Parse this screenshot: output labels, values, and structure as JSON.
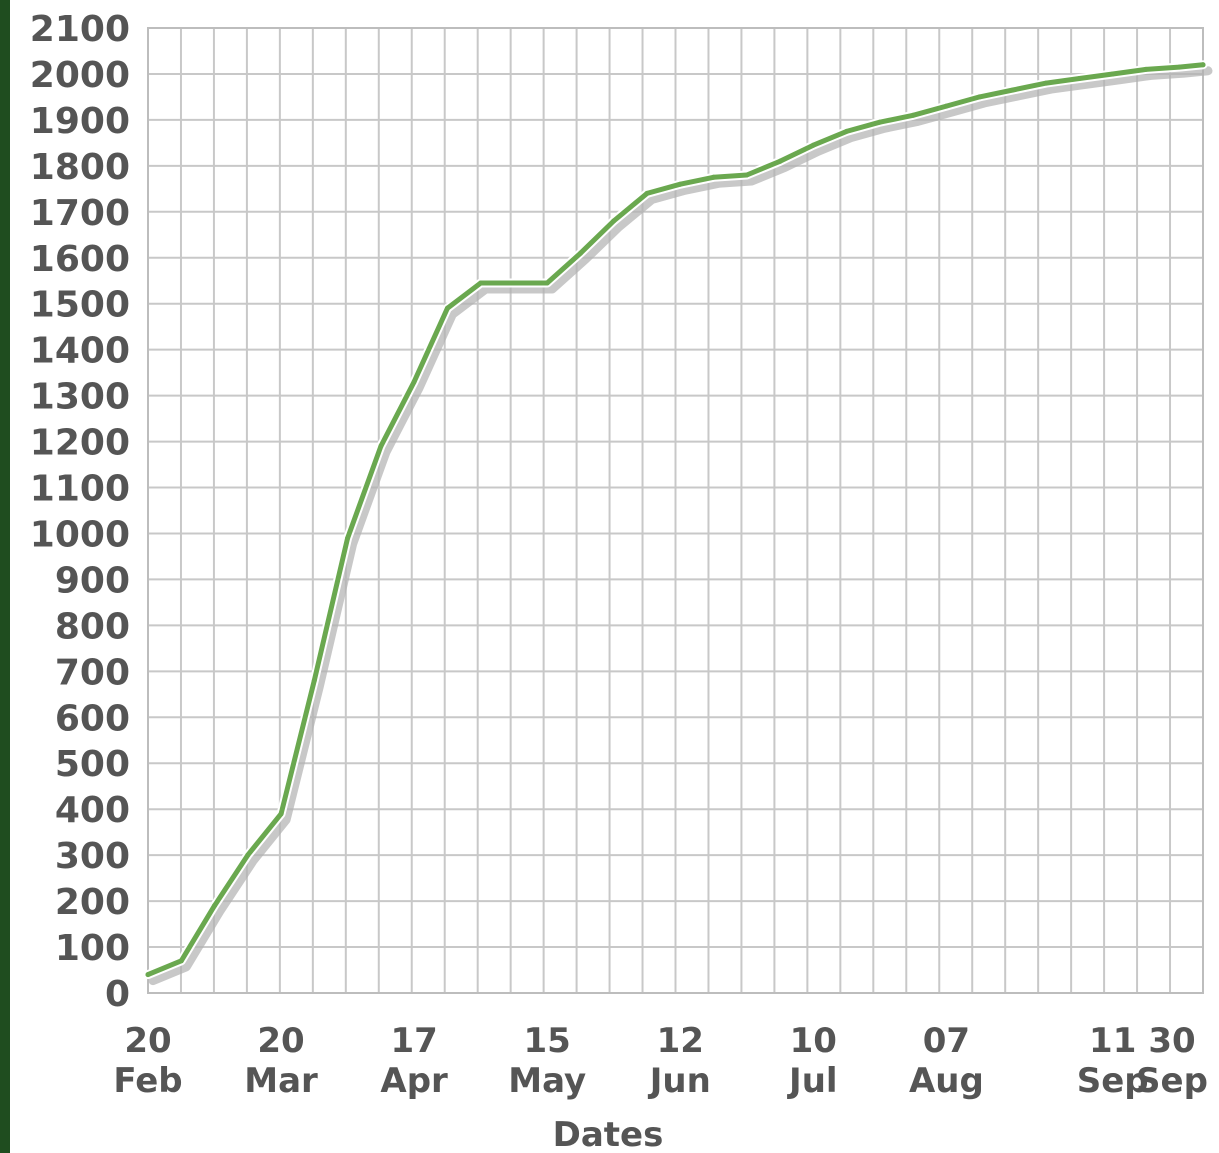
{
  "chart_data": {
    "type": "line",
    "title": "",
    "xlabel": "Dates",
    "ylabel": "",
    "ylim": [
      0,
      2100
    ],
    "yticks": [
      0,
      100,
      200,
      300,
      400,
      500,
      600,
      700,
      800,
      900,
      1000,
      1100,
      1200,
      1300,
      1400,
      1500,
      1600,
      1700,
      1800,
      1900,
      2000,
      2100
    ],
    "xtick_labels": [
      {
        "day": "20",
        "month": "Feb"
      },
      {
        "day": "20",
        "month": "Mar"
      },
      {
        "day": "17",
        "month": "Apr"
      },
      {
        "day": "15",
        "month": "May"
      },
      {
        "day": "12",
        "month": "Jun"
      },
      {
        "day": "10",
        "month": "Jul"
      },
      {
        "day": "07",
        "month": "Aug"
      },
      {
        "day": "11",
        "month": "Sep"
      },
      {
        "day": "30",
        "month": "Sep"
      }
    ],
    "grid": true,
    "line_color": "#6aa84f",
    "shadow_color": "#b0b0b0",
    "series": [
      {
        "points": [
          {
            "x": "20 Feb",
            "y": 40
          },
          {
            "x": "27 Feb",
            "y": 70
          },
          {
            "x": "06 Mar",
            "y": 190
          },
          {
            "x": "13 Mar",
            "y": 300
          },
          {
            "x": "20 Mar",
            "y": 390
          },
          {
            "x": "27 Mar",
            "y": 680
          },
          {
            "x": "03 Apr",
            "y": 990
          },
          {
            "x": "10 Apr",
            "y": 1190
          },
          {
            "x": "17 Apr",
            "y": 1330
          },
          {
            "x": "24 Apr",
            "y": 1490
          },
          {
            "x": "01 May",
            "y": 1545
          },
          {
            "x": "08 May",
            "y": 1545
          },
          {
            "x": "15 May",
            "y": 1545
          },
          {
            "x": "22 May",
            "y": 1610
          },
          {
            "x": "29 May",
            "y": 1680
          },
          {
            "x": "05 Jun",
            "y": 1740
          },
          {
            "x": "12 Jun",
            "y": 1760
          },
          {
            "x": "19 Jun",
            "y": 1775
          },
          {
            "x": "26 Jun",
            "y": 1780
          },
          {
            "x": "03 Jul",
            "y": 1810
          },
          {
            "x": "10 Jul",
            "y": 1845
          },
          {
            "x": "17 Jul",
            "y": 1875
          },
          {
            "x": "24 Jul",
            "y": 1895
          },
          {
            "x": "31 Jul",
            "y": 1910
          },
          {
            "x": "07 Aug",
            "y": 1930
          },
          {
            "x": "14 Aug",
            "y": 1950
          },
          {
            "x": "21 Aug",
            "y": 1965
          },
          {
            "x": "28 Aug",
            "y": 1980
          },
          {
            "x": "04 Sep",
            "y": 1990
          },
          {
            "x": "11 Sep",
            "y": 2000
          },
          {
            "x": "18 Sep",
            "y": 2010
          },
          {
            "x": "25 Sep",
            "y": 2015
          },
          {
            "x": "30 Sep",
            "y": 2020
          }
        ]
      }
    ]
  }
}
